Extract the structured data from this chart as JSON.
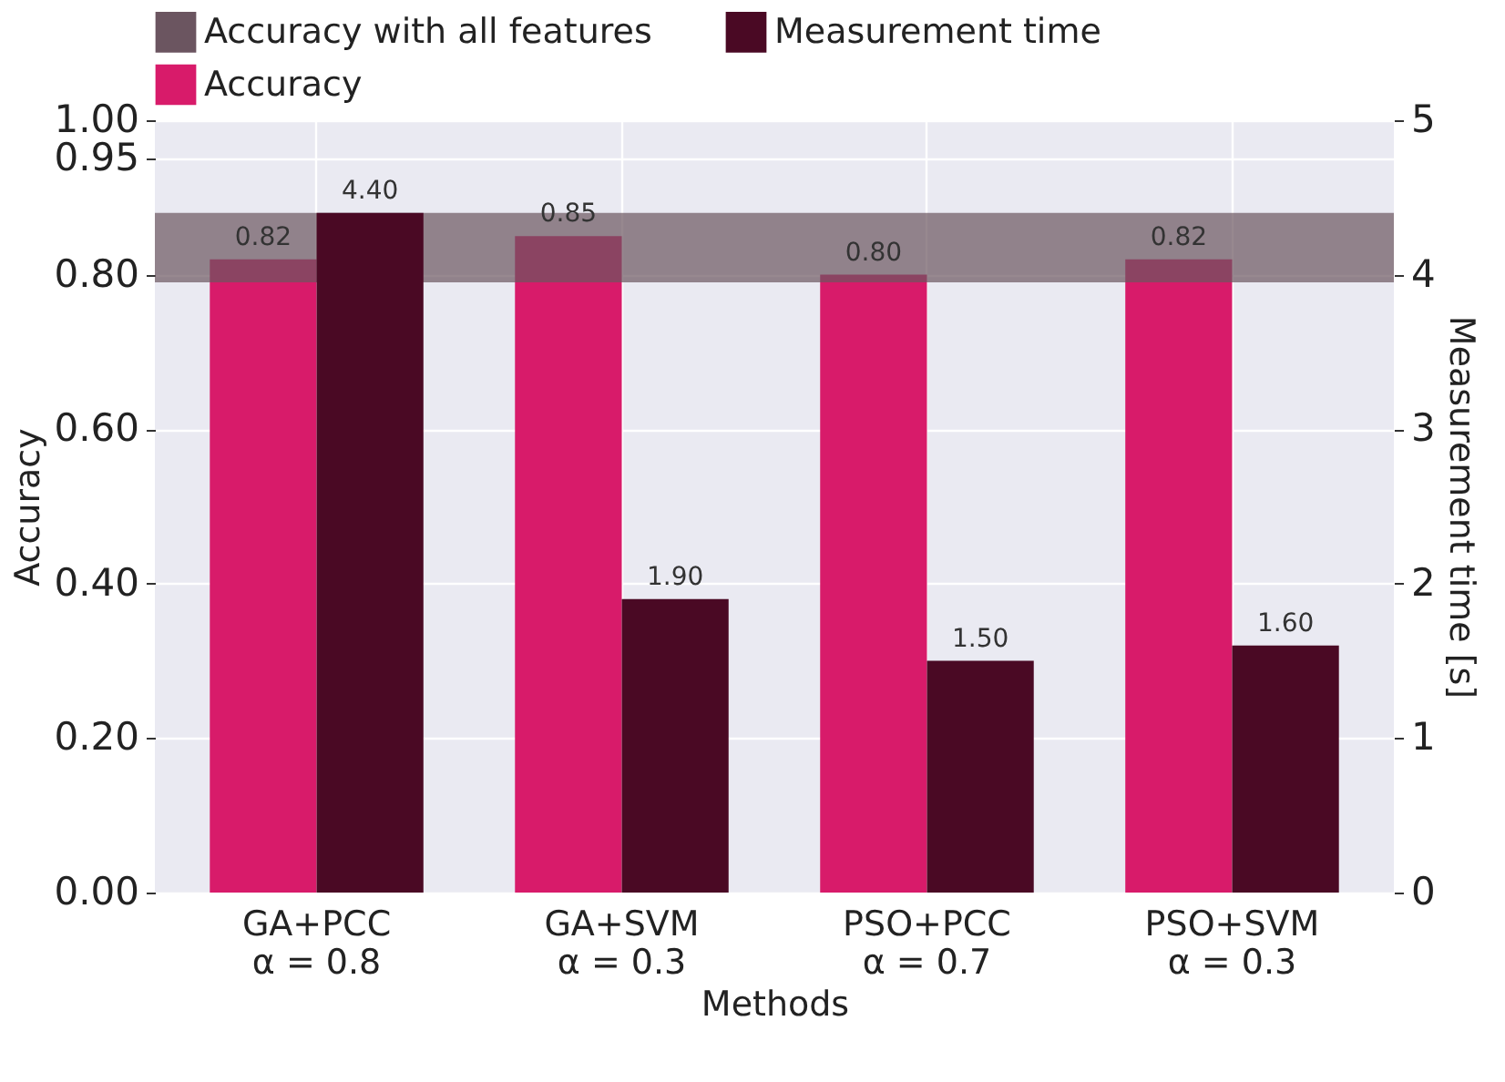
{
  "chart_data": {
    "type": "bar",
    "xlabel": "Methods",
    "ylabel": "Accuracy",
    "y2label": "Measurement time [s]",
    "categories": [
      "GA+PCC\nα = 0.8",
      "GA+SVM\nα = 0.3",
      "PSO+PCC\nα = 0.7",
      "PSO+SVM\nα = 0.3"
    ],
    "series": [
      {
        "name": "Accuracy",
        "color": "#d81b6a",
        "values": [
          0.82,
          0.85,
          0.8,
          0.82
        ],
        "value_labels": [
          "0.82",
          "0.85",
          "0.80",
          "0.82"
        ]
      },
      {
        "name": "Measurement time",
        "color": "#4a0924",
        "axis": "y2",
        "values": [
          4.4,
          1.9,
          1.5,
          1.6
        ],
        "value_labels": [
          "4.40",
          "1.90",
          "1.50",
          "1.60"
        ]
      }
    ],
    "bands": [
      {
        "axis": "y",
        "from": 0.79,
        "to": 0.88,
        "label": "Accuracy with all features",
        "color": "#6b5560"
      }
    ],
    "ylim": [
      0,
      1
    ],
    "yticks": [
      {
        "value": 0,
        "label": "0.00"
      },
      {
        "value": 0.2,
        "label": "0.20"
      },
      {
        "value": 0.4,
        "label": "0.40"
      },
      {
        "value": 0.6,
        "label": "0.60"
      },
      {
        "value": 0.8,
        "label": "0.80"
      },
      {
        "value": 0.95,
        "label": "0.95"
      },
      {
        "value": 1,
        "label": "1.00"
      }
    ],
    "y2lim": [
      0,
      5
    ],
    "y2ticks": [
      0,
      1,
      2,
      3,
      4,
      5
    ],
    "grid": true,
    "legend": "top"
  }
}
